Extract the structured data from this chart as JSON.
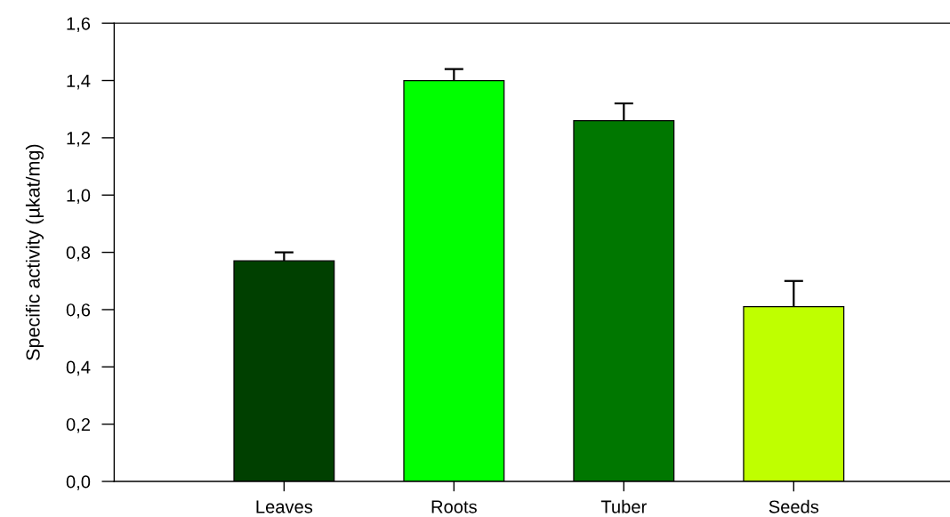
{
  "chart_data": {
    "type": "bar",
    "ylabel": "Specific activity (µkat/mg)",
    "categories": [
      "Leaves",
      "Roots",
      "Tuber",
      "Seeds"
    ],
    "values": [
      0.77,
      1.4,
      1.26,
      0.61
    ],
    "colors": [
      "#004000",
      "#00ff00",
      "#007700",
      "#bfff00"
    ],
    "errors": [
      [
        0.77,
        0.8
      ],
      [
        1.4,
        1.44
      ],
      [
        1.26,
        1.32
      ],
      [
        0.61,
        0.7
      ]
    ],
    "ylim": [
      0,
      1.6
    ],
    "yticks": [
      {
        "value": 0,
        "label": "0,0"
      },
      {
        "value": 0.2,
        "label": "0,2"
      },
      {
        "value": 0.4,
        "label": "0,4"
      },
      {
        "value": 0.6,
        "label": "0,6"
      },
      {
        "value": 0.8,
        "label": "0,8"
      },
      {
        "value": 1.0,
        "label": "1,0"
      },
      {
        "value": 1.2,
        "label": "1,2"
      },
      {
        "value": 1.4,
        "label": "1,4"
      },
      {
        "value": 1.6,
        "label": "1,6"
      }
    ]
  }
}
